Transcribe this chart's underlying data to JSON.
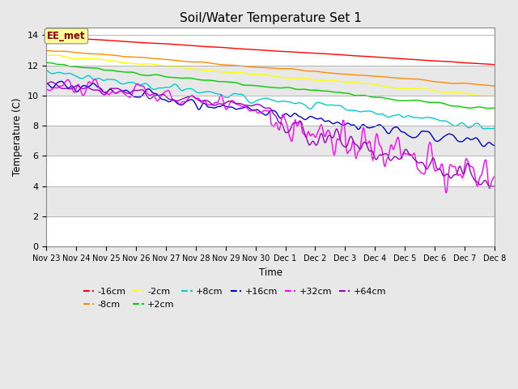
{
  "title": "Soil/Water Temperature Set 1",
  "xlabel": "Time",
  "ylabel": "Temperature (C)",
  "ylim": [
    0,
    14.5
  ],
  "yticks": [
    0,
    2,
    4,
    6,
    8,
    10,
    12,
    14
  ],
  "background_color": "#e8e8e8",
  "plot_bg_color": "#ffffff",
  "annotation_text": "EE_met",
  "annotation_color": "#8b0000",
  "annotation_bg": "#ffff99",
  "series_keys": [
    "-16cm",
    "-8cm",
    "-2cm",
    "+2cm",
    "+8cm",
    "+16cm",
    "+32cm",
    "+64cm"
  ],
  "series": {
    "-16cm": {
      "color": "#ff0000",
      "label": "-16cm"
    },
    "-8cm": {
      "color": "#ff8c00",
      "label": "-8cm"
    },
    "-2cm": {
      "color": "#ffff00",
      "label": "-2cm"
    },
    "+2cm": {
      "color": "#00cc00",
      "label": "+2cm"
    },
    "+8cm": {
      "color": "#00cccc",
      "label": "+8cm"
    },
    "+16cm": {
      "color": "#0000cc",
      "label": "+16cm"
    },
    "+32cm": {
      "color": "#ff00ff",
      "label": "+32cm"
    },
    "+64cm": {
      "color": "#9900bb",
      "label": "+64cm"
    }
  },
  "xtick_labels": [
    "Nov 23",
    "Nov 24",
    "Nov 25",
    "Nov 26",
    "Nov 27",
    "Nov 28",
    "Nov 29",
    "Nov 30",
    "Dec 1",
    "Dec 2",
    "Dec 3",
    "Dec 4",
    "Dec 5",
    "Dec 6",
    "Dec 7",
    "Dec 8"
  ],
  "figsize": [
    6.4,
    4.8
  ],
  "dpi": 100,
  "band_colors": [
    "#ffffff",
    "#e8e8e8"
  ],
  "linewidth": 1.0
}
